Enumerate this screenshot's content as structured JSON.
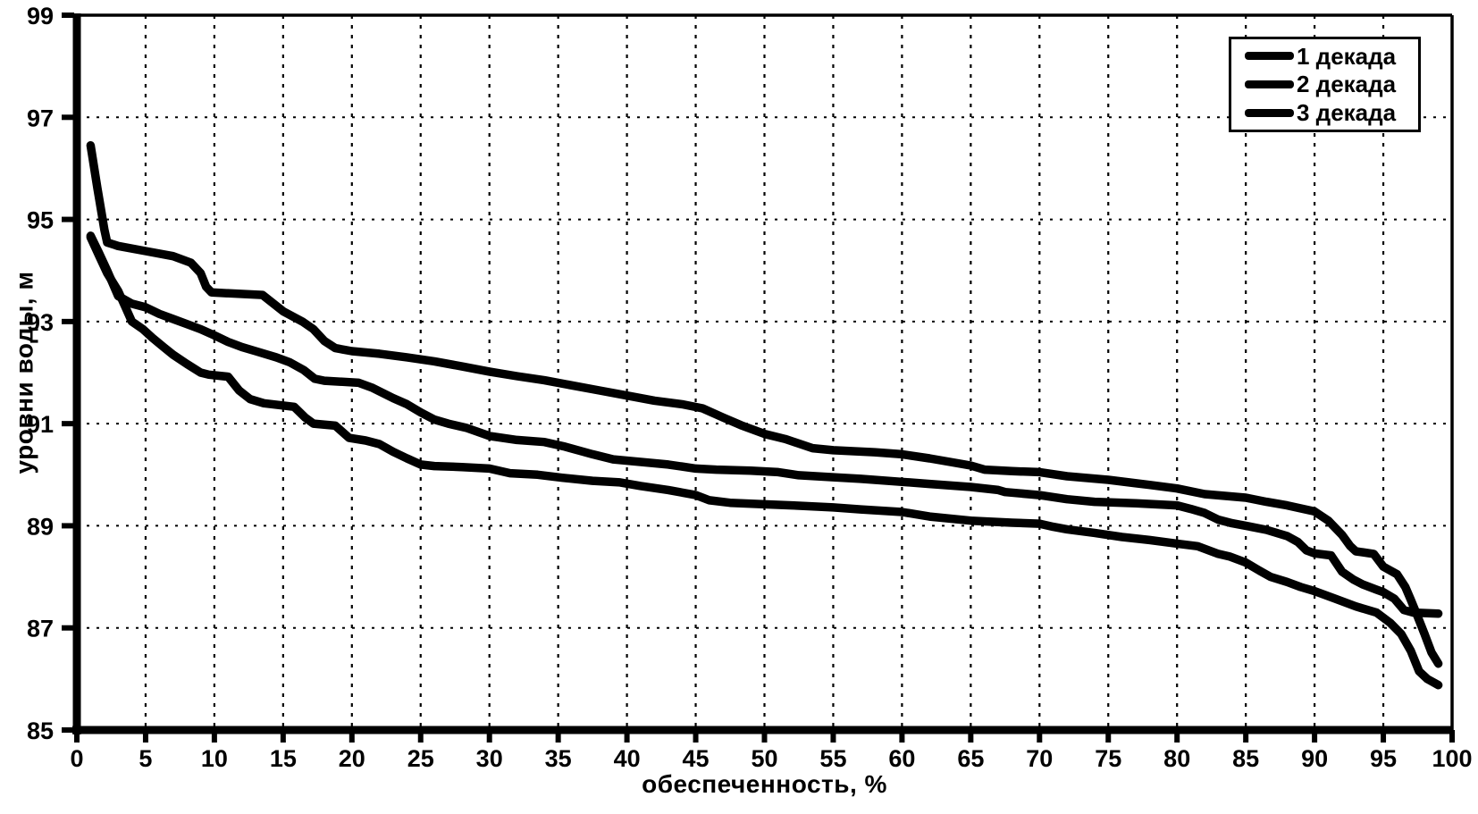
{
  "chart_data": {
    "type": "line",
    "title": "",
    "xlabel": "обеспеченность, %",
    "ylabel": "уровни воды, м",
    "xlim": [
      0,
      100
    ],
    "ylim": [
      85,
      99
    ],
    "xticks": [
      0,
      5,
      10,
      15,
      20,
      25,
      30,
      35,
      40,
      45,
      50,
      55,
      60,
      65,
      70,
      75,
      80,
      85,
      90,
      95,
      100
    ],
    "yticks": [
      85,
      87,
      89,
      91,
      93,
      95,
      97,
      99
    ],
    "grid": true,
    "line_color": "#000000",
    "background": "#ffffff",
    "legend": {
      "position": "top-right",
      "entries": [
        "1 декада",
        "2 декада",
        "3 декада"
      ]
    },
    "series": [
      {
        "name": "1 декада",
        "points": [
          [
            1,
            96.45
          ],
          [
            1.5,
            95.6
          ],
          [
            2,
            94.8
          ],
          [
            2.2,
            94.55
          ],
          [
            3,
            94.48
          ],
          [
            5,
            94.38
          ],
          [
            7,
            94.28
          ],
          [
            8.3,
            94.15
          ],
          [
            9,
            93.95
          ],
          [
            9.4,
            93.68
          ],
          [
            9.8,
            93.57
          ],
          [
            13.5,
            93.52
          ],
          [
            15,
            93.2
          ],
          [
            16.4,
            93.0
          ],
          [
            17.2,
            92.85
          ],
          [
            18,
            92.62
          ],
          [
            18.8,
            92.48
          ],
          [
            20,
            92.42
          ],
          [
            22,
            92.37
          ],
          [
            24,
            92.3
          ],
          [
            26,
            92.22
          ],
          [
            28,
            92.12
          ],
          [
            30,
            92.02
          ],
          [
            32,
            91.93
          ],
          [
            34,
            91.85
          ],
          [
            36,
            91.75
          ],
          [
            38,
            91.65
          ],
          [
            40,
            91.55
          ],
          [
            42,
            91.45
          ],
          [
            44,
            91.38
          ],
          [
            45.5,
            91.3
          ],
          [
            47,
            91.12
          ],
          [
            48.3,
            90.97
          ],
          [
            50,
            90.8
          ],
          [
            51.5,
            90.7
          ],
          [
            53.5,
            90.52
          ],
          [
            55,
            90.48
          ],
          [
            58,
            90.44
          ],
          [
            60,
            90.4
          ],
          [
            62,
            90.32
          ],
          [
            63.5,
            90.25
          ],
          [
            65,
            90.18
          ],
          [
            66,
            90.1
          ],
          [
            68,
            90.07
          ],
          [
            70,
            90.05
          ],
          [
            72,
            89.97
          ],
          [
            75,
            89.9
          ],
          [
            78,
            89.8
          ],
          [
            80,
            89.73
          ],
          [
            82,
            89.62
          ],
          [
            85,
            89.55
          ],
          [
            86.5,
            89.47
          ],
          [
            88,
            89.4
          ],
          [
            90,
            89.28
          ],
          [
            91,
            89.1
          ],
          [
            92,
            88.82
          ],
          [
            92.6,
            88.6
          ],
          [
            93,
            88.5
          ],
          [
            94.3,
            88.45
          ],
          [
            95,
            88.2
          ],
          [
            96,
            88.05
          ],
          [
            96.6,
            87.8
          ],
          [
            97,
            87.55
          ],
          [
            97.5,
            87.22
          ],
          [
            98,
            86.88
          ],
          [
            98.5,
            86.52
          ],
          [
            99,
            86.3
          ]
        ]
      },
      {
        "name": "2 декада",
        "points": [
          [
            1,
            94.68
          ],
          [
            1.6,
            94.35
          ],
          [
            2.2,
            94.0
          ],
          [
            3,
            93.5
          ],
          [
            4,
            93.35
          ],
          [
            5,
            93.28
          ],
          [
            6,
            93.15
          ],
          [
            7,
            93.05
          ],
          [
            8,
            92.95
          ],
          [
            9,
            92.85
          ],
          [
            10,
            92.73
          ],
          [
            11,
            92.6
          ],
          [
            12,
            92.5
          ],
          [
            13,
            92.42
          ],
          [
            14.5,
            92.3
          ],
          [
            15.5,
            92.2
          ],
          [
            16.5,
            92.05
          ],
          [
            17.3,
            91.88
          ],
          [
            18,
            91.84
          ],
          [
            20.5,
            91.8
          ],
          [
            21.5,
            91.7
          ],
          [
            23,
            91.5
          ],
          [
            24,
            91.38
          ],
          [
            25,
            91.22
          ],
          [
            26,
            91.08
          ],
          [
            27,
            91.0
          ],
          [
            28.3,
            90.92
          ],
          [
            30,
            90.76
          ],
          [
            32,
            90.68
          ],
          [
            34,
            90.64
          ],
          [
            35.5,
            90.55
          ],
          [
            37.5,
            90.4
          ],
          [
            39,
            90.3
          ],
          [
            41,
            90.25
          ],
          [
            43,
            90.2
          ],
          [
            45,
            90.12
          ],
          [
            46.5,
            90.1
          ],
          [
            49,
            90.08
          ],
          [
            51,
            90.05
          ],
          [
            52.5,
            89.99
          ],
          [
            55,
            89.95
          ],
          [
            57,
            89.92
          ],
          [
            60,
            89.86
          ],
          [
            62,
            89.82
          ],
          [
            65,
            89.76
          ],
          [
            67,
            89.7
          ],
          [
            67.5,
            89.66
          ],
          [
            70,
            89.6
          ],
          [
            72,
            89.52
          ],
          [
            74,
            89.47
          ],
          [
            77,
            89.44
          ],
          [
            80,
            89.4
          ],
          [
            81,
            89.33
          ],
          [
            82,
            89.25
          ],
          [
            83,
            89.12
          ],
          [
            84,
            89.05
          ],
          [
            85,
            89.0
          ],
          [
            86.5,
            88.92
          ],
          [
            88,
            88.8
          ],
          [
            88.8,
            88.68
          ],
          [
            89.4,
            88.52
          ],
          [
            90,
            88.46
          ],
          [
            91.2,
            88.42
          ],
          [
            92,
            88.1
          ],
          [
            92.8,
            87.95
          ],
          [
            93.5,
            87.85
          ],
          [
            94.5,
            87.75
          ],
          [
            95,
            87.7
          ],
          [
            95.8,
            87.57
          ],
          [
            96.5,
            87.35
          ],
          [
            97.2,
            87.3
          ],
          [
            99,
            87.28
          ]
        ]
      },
      {
        "name": "3 декада",
        "points": [
          [
            1,
            94.65
          ],
          [
            1.6,
            94.3
          ],
          [
            2.2,
            93.95
          ],
          [
            3,
            93.6
          ],
          [
            3.5,
            93.3
          ],
          [
            4,
            93.0
          ],
          [
            4.8,
            92.85
          ],
          [
            5.5,
            92.68
          ],
          [
            6.3,
            92.5
          ],
          [
            7,
            92.35
          ],
          [
            8,
            92.17
          ],
          [
            9,
            92.0
          ],
          [
            9.6,
            91.96
          ],
          [
            11,
            91.92
          ],
          [
            11.8,
            91.65
          ],
          [
            12.6,
            91.48
          ],
          [
            13.6,
            91.4
          ],
          [
            15.8,
            91.33
          ],
          [
            16.6,
            91.12
          ],
          [
            17.2,
            91.0
          ],
          [
            18.8,
            90.96
          ],
          [
            19.8,
            90.72
          ],
          [
            21,
            90.67
          ],
          [
            22,
            90.6
          ],
          [
            23,
            90.45
          ],
          [
            24,
            90.32
          ],
          [
            25,
            90.2
          ],
          [
            26,
            90.17
          ],
          [
            28,
            90.15
          ],
          [
            30,
            90.12
          ],
          [
            31.5,
            90.03
          ],
          [
            33.5,
            90.0
          ],
          [
            35.3,
            89.94
          ],
          [
            37.5,
            89.88
          ],
          [
            39.5,
            89.85
          ],
          [
            41,
            89.78
          ],
          [
            43,
            89.7
          ],
          [
            45,
            89.6
          ],
          [
            46,
            89.5
          ],
          [
            47.5,
            89.45
          ],
          [
            50,
            89.42
          ],
          [
            52,
            89.4
          ],
          [
            55,
            89.36
          ],
          [
            57,
            89.32
          ],
          [
            60,
            89.27
          ],
          [
            62,
            89.18
          ],
          [
            65,
            89.1
          ],
          [
            68,
            89.06
          ],
          [
            70,
            89.04
          ],
          [
            71,
            88.98
          ],
          [
            72,
            88.93
          ],
          [
            74,
            88.86
          ],
          [
            76,
            88.78
          ],
          [
            78,
            88.72
          ],
          [
            80,
            88.65
          ],
          [
            81.5,
            88.6
          ],
          [
            83,
            88.45
          ],
          [
            83.8,
            88.4
          ],
          [
            85,
            88.28
          ],
          [
            86,
            88.12
          ],
          [
            86.8,
            88.0
          ],
          [
            88,
            87.9
          ],
          [
            89,
            87.8
          ],
          [
            90,
            87.72
          ],
          [
            91.5,
            87.57
          ],
          [
            93,
            87.42
          ],
          [
            94.5,
            87.3
          ],
          [
            95.5,
            87.1
          ],
          [
            96.3,
            86.88
          ],
          [
            97,
            86.55
          ],
          [
            97.6,
            86.15
          ],
          [
            98.2,
            86.0
          ],
          [
            99,
            85.88
          ]
        ]
      }
    ]
  }
}
